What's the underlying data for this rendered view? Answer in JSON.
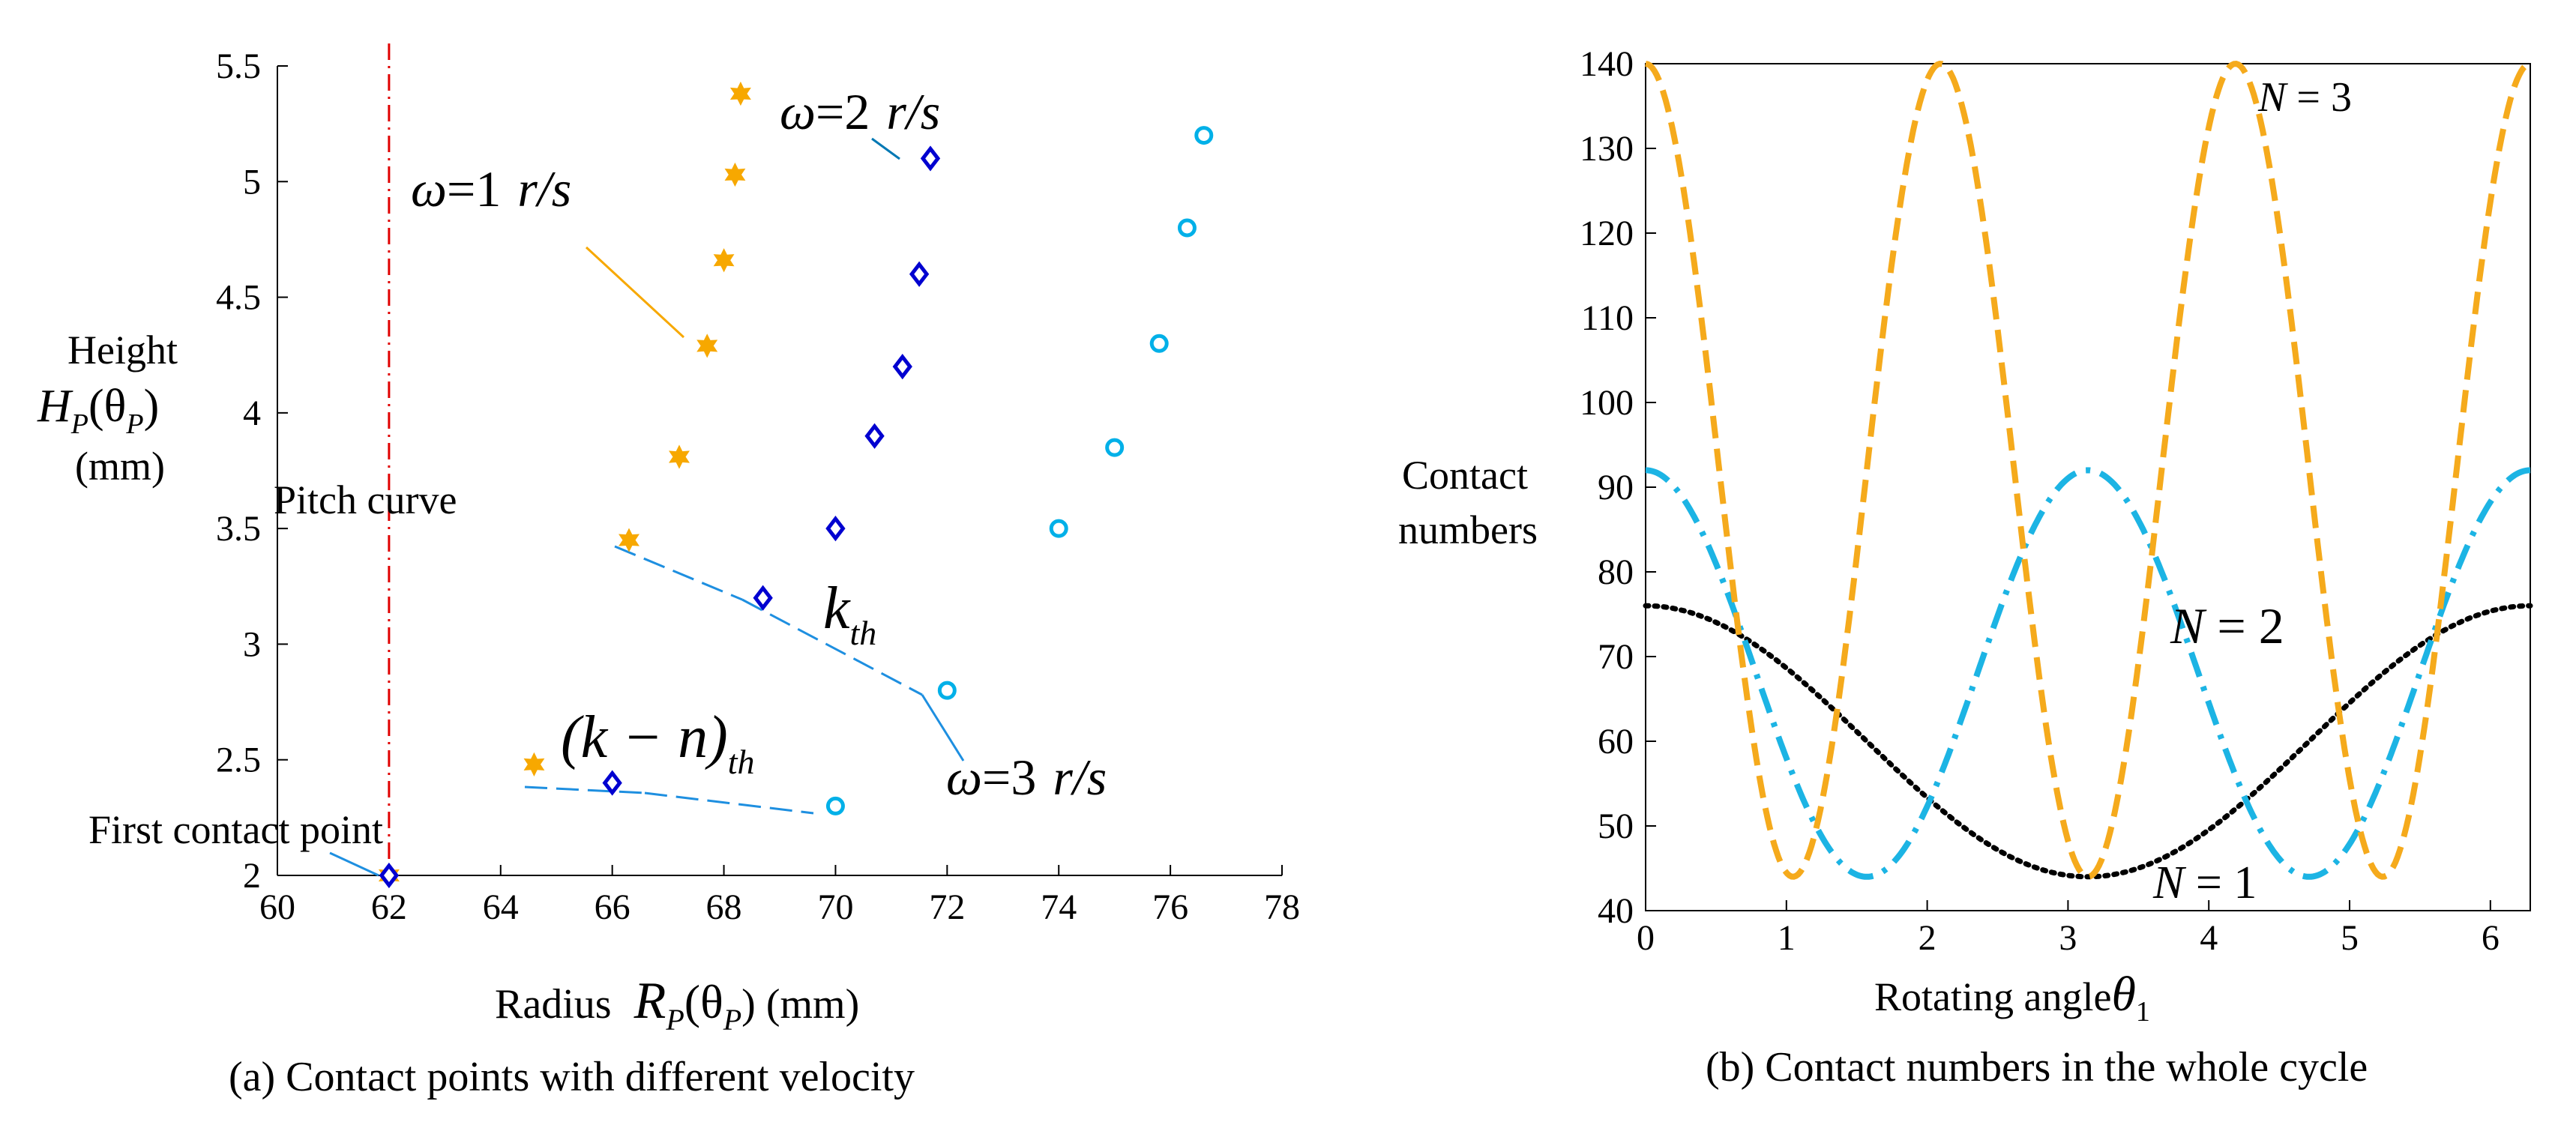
{
  "figure": {
    "caption_a": "(a) Contact points with different velocity",
    "caption_b": "(b) Contact numbers in the whole cycle"
  },
  "chart_data": [
    {
      "type": "scatter",
      "title": "",
      "xlabel": "Radius",
      "xlabel_symbol": "R",
      "xlabel_sub": "P",
      "xlabel_arg": "(θ",
      "xlabel_arg_sub": "P",
      "xlabel_unit": ") (mm)",
      "ylabel_line1": "Height",
      "ylabel_symbol": "H",
      "ylabel_sub": "P",
      "ylabel_arg": "(θ",
      "ylabel_arg_sub": "P",
      "ylabel_close": ")",
      "ylabel_unit": "(mm)",
      "xlim": [
        60,
        78
      ],
      "ylim": [
        2,
        5.5
      ],
      "xticks": [
        60,
        62,
        64,
        66,
        68,
        70,
        72,
        74,
        76,
        78
      ],
      "yticks": [
        2,
        2.5,
        3,
        3.5,
        4,
        4.5,
        5,
        5.5
      ],
      "series": [
        {
          "name": "ω = 1 r/s",
          "marker": "star",
          "color": "#f7a800",
          "x": [
            62.0,
            64.6,
            66.3,
            67.2,
            67.7,
            68.0,
            68.2,
            68.3
          ],
          "y": [
            2.0,
            2.48,
            3.45,
            3.81,
            4.29,
            4.66,
            5.03,
            5.38
          ]
        },
        {
          "name": "ω = 2 r/s",
          "marker": "diamond",
          "color": "#0000d0",
          "x": [
            62.0,
            66.0,
            68.7,
            70.0,
            70.7,
            71.2,
            71.5,
            71.7
          ],
          "y": [
            2.0,
            2.4,
            3.2,
            3.5,
            3.9,
            4.2,
            4.6,
            5.1
          ]
        },
        {
          "name": "ω = 3 r/s",
          "marker": "circle",
          "color": "#00b0e8",
          "x": [
            70.0,
            72.0,
            74.0,
            75.0,
            75.8,
            76.3,
            76.6
          ],
          "y": [
            2.3,
            2.8,
            3.5,
            3.85,
            4.3,
            4.8,
            5.2
          ]
        }
      ],
      "vline": {
        "x": 62,
        "label": "Pitch curve",
        "color": "#e00000"
      },
      "annotations": {
        "w1": {
          "omega": "ω",
          "eq": "=1",
          "unit": "r/s"
        },
        "w2": {
          "omega": "ω",
          "eq": "=2",
          "unit": "r/s"
        },
        "w3": {
          "omega": "ω",
          "eq": "=3",
          "unit": "r/s"
        },
        "kth": {
          "k": "k",
          "sub": "th"
        },
        "knth": {
          "expr": "(k − n)",
          "sub": "th"
        },
        "first_contact": "First contact point"
      }
    },
    {
      "type": "line",
      "title": "",
      "xlabel": "Rotating angle",
      "xlabel_symbol": "θ",
      "xlabel_sub": "1",
      "ylabel_line1": "Contact",
      "ylabel_line2": "numbers",
      "xlim": [
        0,
        6.2832
      ],
      "ylim": [
        40,
        140
      ],
      "xticks": [
        0,
        1,
        2,
        3,
        4,
        5,
        6
      ],
      "yticks": [
        40,
        50,
        60,
        70,
        80,
        90,
        100,
        110,
        120,
        130,
        140
      ],
      "series": [
        {
          "name": "N = 1",
          "label_N": "N",
          "label_eq": " = 1",
          "mean": 60,
          "amp": 16,
          "freq": 1,
          "style": "dotted",
          "color": "#000000"
        },
        {
          "name": "N = 2",
          "label_N": "N",
          "label_eq": " = 2",
          "mean": 68,
          "amp": 24,
          "freq": 2,
          "style": "dashdot",
          "color": "#1cb4e4"
        },
        {
          "name": "N = 3",
          "label_N": "N",
          "label_eq": " = 3",
          "mean": 92,
          "amp": 48,
          "freq": 3,
          "style": "dashed",
          "color": "#f5aa1c"
        }
      ]
    }
  ]
}
